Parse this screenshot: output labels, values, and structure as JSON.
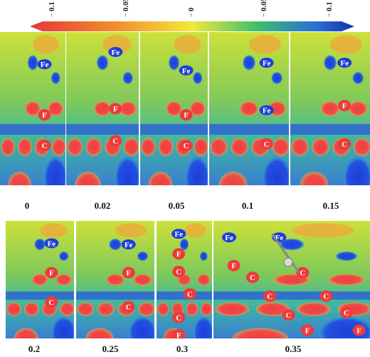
{
  "colorbar": {
    "ticks": [
      "0.1",
      "0.05",
      "0",
      "0.05",
      "0.1"
    ],
    "colors": [
      "#e8353a",
      "#f08a2a",
      "#f3e93a",
      "#3fbf6a",
      "#2a6fd6",
      "#1632b0"
    ]
  },
  "panels": [
    {
      "label": "0",
      "atoms": [
        "Fe",
        "F",
        "C"
      ]
    },
    {
      "label": "0.02",
      "atoms": [
        "Fe",
        "F",
        "C"
      ]
    },
    {
      "label": "0.05",
      "atoms": [
        "Fe",
        "F",
        "C"
      ]
    },
    {
      "label": "0.1",
      "atoms": [
        "Fe",
        "Fe",
        "C"
      ]
    },
    {
      "label": "0.15",
      "atoms": [
        "Fe",
        "F",
        "C"
      ]
    },
    {
      "label": "0.2",
      "atoms": [
        "Fe",
        "F",
        "C"
      ]
    },
    {
      "label": "0.25",
      "atoms": [
        "Fe",
        "F",
        "C"
      ]
    },
    {
      "label": "0.3",
      "atoms": [
        "Fe",
        "F",
        "C",
        "C",
        "C",
        "F"
      ]
    },
    {
      "label": "0.35",
      "atoms": [
        "Fe",
        "Fe",
        "F",
        "C",
        "C",
        "C",
        "C",
        "C",
        "C",
        "F",
        "F"
      ]
    }
  ]
}
